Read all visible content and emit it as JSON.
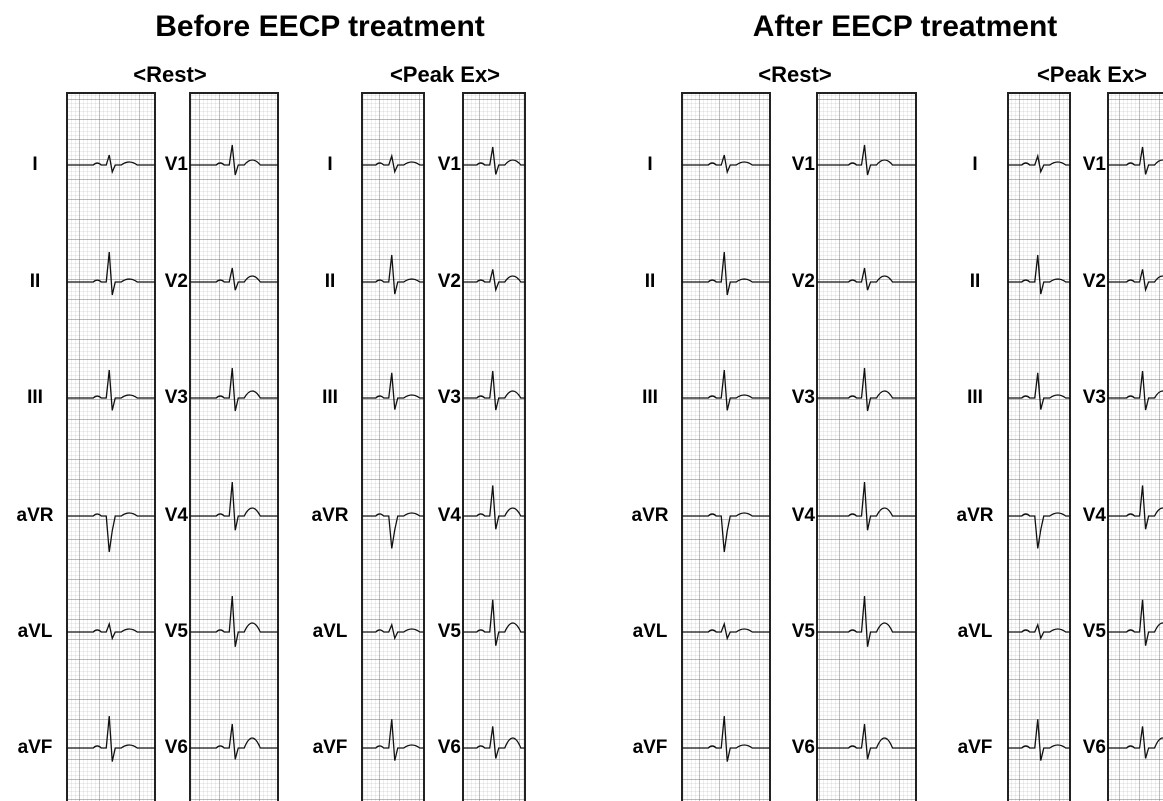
{
  "panels": [
    {
      "title": "Before EECP treatment",
      "groups": [
        {
          "title": "<Rest>",
          "limb_leads": [
            "I",
            "II",
            "III",
            "aVR",
            "aVL",
            "aVF"
          ],
          "chest_leads": [
            "V1",
            "V2",
            "V3",
            "V4",
            "V5",
            "V6"
          ]
        },
        {
          "title": "<Peak Ex>",
          "limb_leads": [
            "I",
            "II",
            "III",
            "aVR",
            "aVL",
            "aVF"
          ],
          "chest_leads": [
            "V1",
            "V2",
            "V3",
            "V4",
            "V5",
            "V6"
          ]
        }
      ]
    },
    {
      "title": "After EECP treatment",
      "groups": [
        {
          "title": "<Rest>",
          "limb_leads": [
            "I",
            "II",
            "III",
            "aVR",
            "aVL",
            "aVF"
          ],
          "chest_leads": [
            "V1",
            "V2",
            "V3",
            "V4",
            "V5",
            "V6"
          ]
        },
        {
          "title": "<Peak Ex>",
          "limb_leads": [
            "I",
            "II",
            "III",
            "aVR",
            "aVL",
            "aVF"
          ],
          "chest_leads": [
            "V1",
            "V2",
            "V3",
            "V4",
            "V5",
            "V6"
          ]
        }
      ]
    }
  ]
}
